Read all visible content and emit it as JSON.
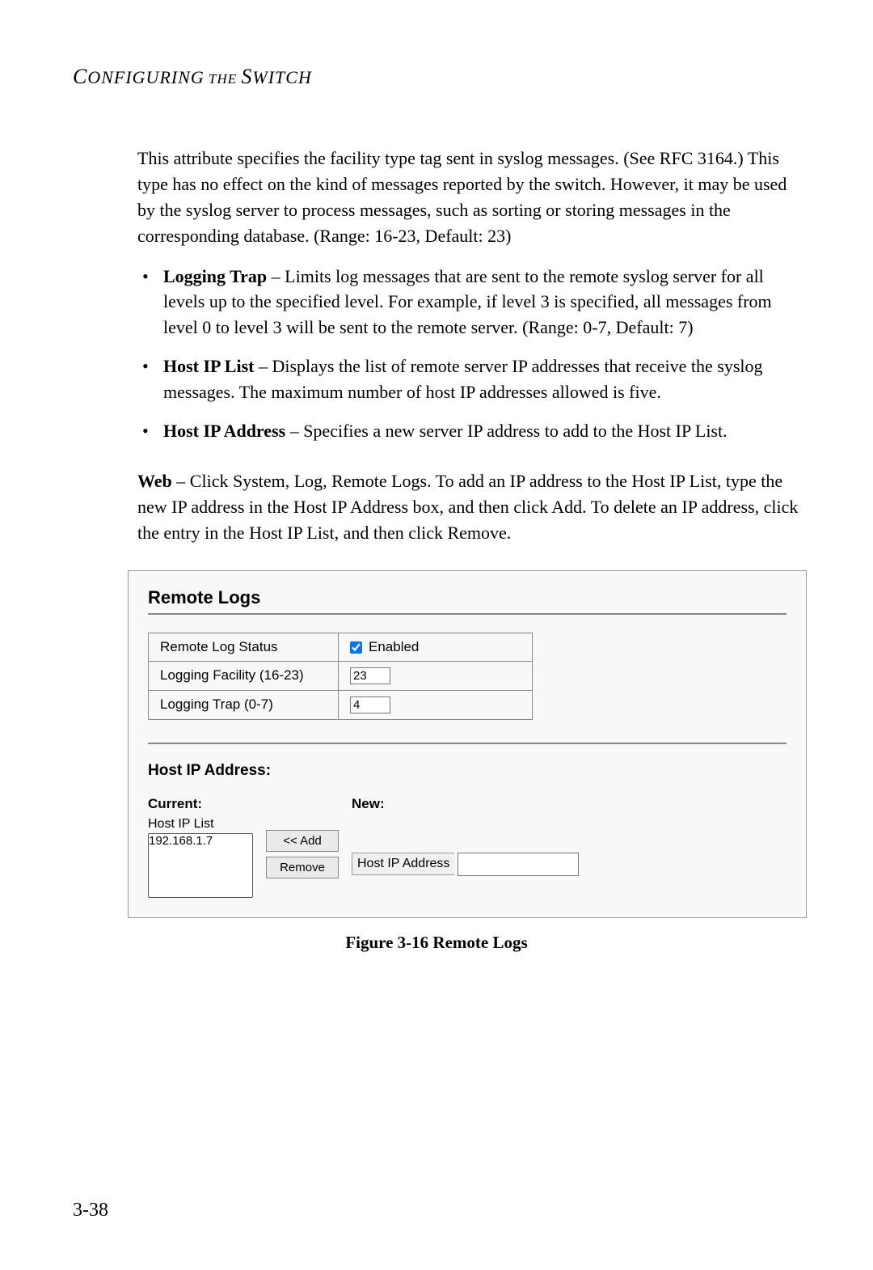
{
  "header": {
    "title_main": "C",
    "title_rest_1": "ONFIGURING",
    "title_mid": " THE ",
    "title_main2": "S",
    "title_rest_2": "WITCH"
  },
  "intro_paragraph": "This attribute specifies the facility type tag sent in syslog messages. (See RFC 3164.) This type has no effect on the kind of messages reported by the switch. However, it may be used by the syslog server to process messages, such as sorting or storing messages in the corresponding database. (Range: 16-23, Default: 23)",
  "bullets": [
    {
      "term": "Logging Trap",
      "text": " – Limits log messages that are sent to the remote syslog server for all levels up to the specified level. For example, if level 3 is specified, all messages from level 0 to level 3 will be sent to the remote server. (Range: 0-7, Default: 7)"
    },
    {
      "term": "Host IP List",
      "text": " – Displays the list of remote server IP addresses that receive the syslog messages. The maximum number of host IP addresses allowed is five."
    },
    {
      "term": "Host IP Address",
      "text": " – Specifies a new server IP address to add to the Host IP List."
    }
  ],
  "web_term": "Web",
  "web_text": " – Click System, Log, Remote Logs. To add an IP address to the Host IP List, type the new IP address in the Host IP Address box, and then click Add. To delete an IP address, click the entry in the Host IP List, and then click Remove.",
  "panel": {
    "title": "Remote Logs",
    "rows": {
      "status_label": "Remote Log Status",
      "status_value": "Enabled",
      "facility_label": "Logging Facility (16-23)",
      "facility_value": "23",
      "trap_label": "Logging Trap (0-7)",
      "trap_value": "4"
    },
    "host_section": {
      "title": "Host IP Address:",
      "current_label": "Current:",
      "list_label": "Host IP List",
      "list_item": "192.168.1.7",
      "new_label": "New:",
      "add_button": "<< Add",
      "remove_button": "Remove",
      "ip_field_label": "Host IP Address"
    }
  },
  "figure_caption": "Figure 3-16  Remote Logs",
  "page_number": "3-38"
}
